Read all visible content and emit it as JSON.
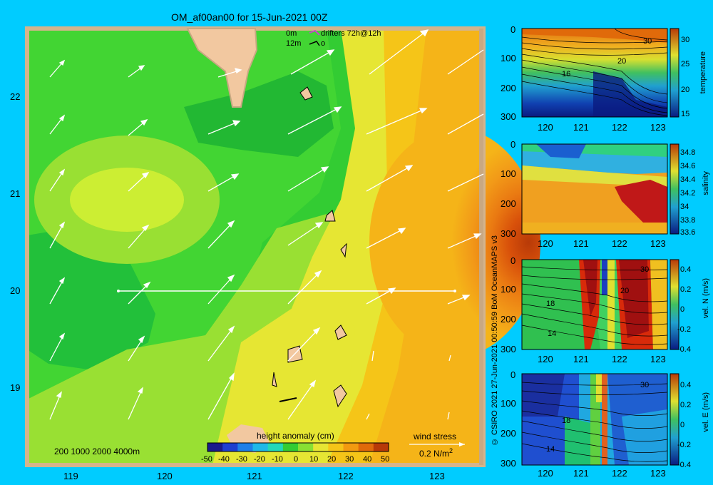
{
  "title": "OM_af00an00 for 15-Jun-2021 00Z",
  "map": {
    "lon_ticks": [
      "119",
      "120",
      "121",
      "122",
      "123"
    ],
    "lat_ticks": [
      "22",
      "21",
      "20",
      "19"
    ],
    "depth_legend": "200  1000  2000  4000m",
    "drifter_legend": {
      "line1_depth": "0m",
      "line1_text": "drifters 72h@12h",
      "line2_depth": "12m",
      "line2_text": "o"
    },
    "colorbar": {
      "title": "height anomaly (cm)",
      "ticks": [
        "-50",
        "-40",
        "-30",
        "-20",
        "-10",
        "0",
        "10",
        "20",
        "30",
        "40",
        "50"
      ],
      "colors": [
        "#1a1a8c",
        "#1f3fd0",
        "#1f7fe8",
        "#1fb8e8",
        "#22d8b8",
        "#33cc33",
        "#88e033",
        "#e6e633",
        "#f5c518",
        "#f29a10",
        "#e06a0a",
        "#b83a08"
      ]
    },
    "wind_legend": {
      "label": "wind stress",
      "value": "0.2 N/m",
      "superscript": "2"
    }
  },
  "panels": [
    {
      "label": "temperature",
      "depth_ticks": [
        "0",
        "100",
        "200",
        "300"
      ],
      "lon_ticks": [
        "120",
        "121",
        "122",
        "123"
      ],
      "cb_ticks": [
        "30",
        "25",
        "20",
        "15"
      ],
      "contour_labels": [
        "30",
        "20",
        "16"
      ]
    },
    {
      "label": "salinity",
      "depth_ticks": [
        "0",
        "100",
        "200",
        "300"
      ],
      "lon_ticks": [
        "120",
        "121",
        "122",
        "123"
      ],
      "cb_ticks": [
        "34.8",
        "34.6",
        "34.4",
        "34.2",
        "34",
        "33.8",
        "33.6"
      ]
    },
    {
      "label": "vel. N (m/s)",
      "depth_ticks": [
        "0",
        "100",
        "200",
        "300"
      ],
      "lon_ticks": [
        "120",
        "121",
        "122",
        "123"
      ],
      "cb_ticks": [
        "0.4",
        "0.2",
        "0",
        "-0.2",
        "-0.4"
      ],
      "contour_labels": [
        "30",
        "20",
        "18",
        "14"
      ]
    },
    {
      "label": "vel. E (m/s)",
      "depth_ticks": [
        "0",
        "100",
        "200",
        "300"
      ],
      "lon_ticks": [
        "120",
        "121",
        "122",
        "123"
      ],
      "cb_ticks": [
        "0.4",
        "0.2",
        "0",
        "-0.2",
        "-0.4"
      ],
      "contour_labels": [
        "30",
        "18",
        "14"
      ]
    }
  ],
  "side_credit": "© CSIRO 2021  27-Jun-2021 00:50:59 BoM OceanMAPS v3"
}
